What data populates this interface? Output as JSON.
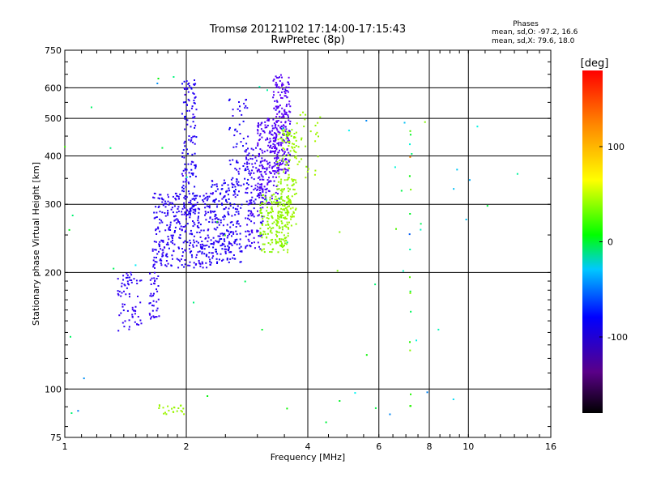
{
  "chart_data": {
    "type": "scatter",
    "title": "Tromsø 20121102 17:14:00-17:15:43",
    "subtitle": "RwPretec (8p)",
    "xlabel": "Frequency [MHz]",
    "ylabel": "Stationary phase Virtual Height [km]",
    "x_scale": "log",
    "y_scale": "log",
    "xlim": [
      1,
      16
    ],
    "ylim": [
      75,
      750
    ],
    "x_ticks": [
      1,
      2,
      4,
      6,
      8,
      10,
      16
    ],
    "y_ticks": [
      75,
      100,
      200,
      300,
      400,
      500,
      600,
      750
    ],
    "grid": true,
    "phase_summary": {
      "heading": "Phases",
      "o_line": "mean, sd,O: -97.2, 16.6",
      "x_line": "mean, sd,X:  79.6, 18.0"
    },
    "colorbar": {
      "label": "[deg]",
      "range": [
        -180,
        180
      ],
      "ticks": [
        -100,
        0,
        100
      ],
      "palette": "rainbow"
    },
    "clusters": [
      {
        "name": "o-trace-low-1",
        "x": [
          1.35,
          1.55
        ],
        "y": [
          140,
          200
        ],
        "n": 70,
        "phase": -110,
        "sd": 8
      },
      {
        "name": "o-trace-low-2",
        "x": [
          1.62,
          1.72
        ],
        "y": [
          150,
          200
        ],
        "n": 40,
        "phase": -110,
        "sd": 8
      },
      {
        "name": "o-trace-F-1",
        "x": [
          1.65,
          2.3
        ],
        "y": [
          205,
          320
        ],
        "n": 350,
        "phase": -108,
        "sd": 10
      },
      {
        "name": "o-trace-F-tall-1",
        "x": [
          1.95,
          2.12
        ],
        "y": [
          280,
          630
        ],
        "n": 140,
        "phase": -106,
        "sd": 12
      },
      {
        "name": "o-trace-F-2",
        "x": [
          2.3,
          2.75
        ],
        "y": [
          210,
          350
        ],
        "n": 230,
        "phase": -106,
        "sd": 12
      },
      {
        "name": "o-trace-F-tall-2",
        "x": [
          2.55,
          2.85
        ],
        "y": [
          330,
          560
        ],
        "n": 60,
        "phase": -105,
        "sd": 12
      },
      {
        "name": "o-trace-F-3",
        "x": [
          2.8,
          3.1
        ],
        "y": [
          230,
          420
        ],
        "n": 140,
        "phase": -112,
        "sd": 12
      },
      {
        "name": "o-trace-F-4",
        "x": [
          3.0,
          3.4
        ],
        "y": [
          300,
          500
        ],
        "n": 200,
        "phase": -118,
        "sd": 12
      },
      {
        "name": "o-trace-top",
        "x": [
          3.28,
          3.62
        ],
        "y": [
          360,
          650
        ],
        "n": 200,
        "phase": -120,
        "sd": 12
      },
      {
        "name": "x-trace-1",
        "x": [
          3.05,
          3.6
        ],
        "y": [
          225,
          320
        ],
        "n": 180,
        "phase": 82,
        "sd": 10
      },
      {
        "name": "x-trace-2",
        "x": [
          3.35,
          3.75
        ],
        "y": [
          260,
          470
        ],
        "n": 170,
        "phase": 85,
        "sd": 10
      },
      {
        "name": "x-trace-3",
        "x": [
          3.7,
          4.3
        ],
        "y": [
          350,
          520
        ],
        "n": 30,
        "phase": 85,
        "sd": 8
      },
      {
        "name": "x-trace-low",
        "x": [
          1.7,
          2.0
        ],
        "y": [
          86,
          91
        ],
        "n": 22,
        "phase": 85,
        "sd": 5
      },
      {
        "name": "scatter-misc",
        "x": [
          1.0,
          14.0
        ],
        "y": [
          80,
          650
        ],
        "n": 60,
        "phase": 0,
        "sd": 120
      },
      {
        "name": "col-7",
        "x": [
          7.15,
          7.2
        ],
        "y": [
          85,
          560
        ],
        "n": 18,
        "phase": 40,
        "sd": 120
      }
    ]
  }
}
